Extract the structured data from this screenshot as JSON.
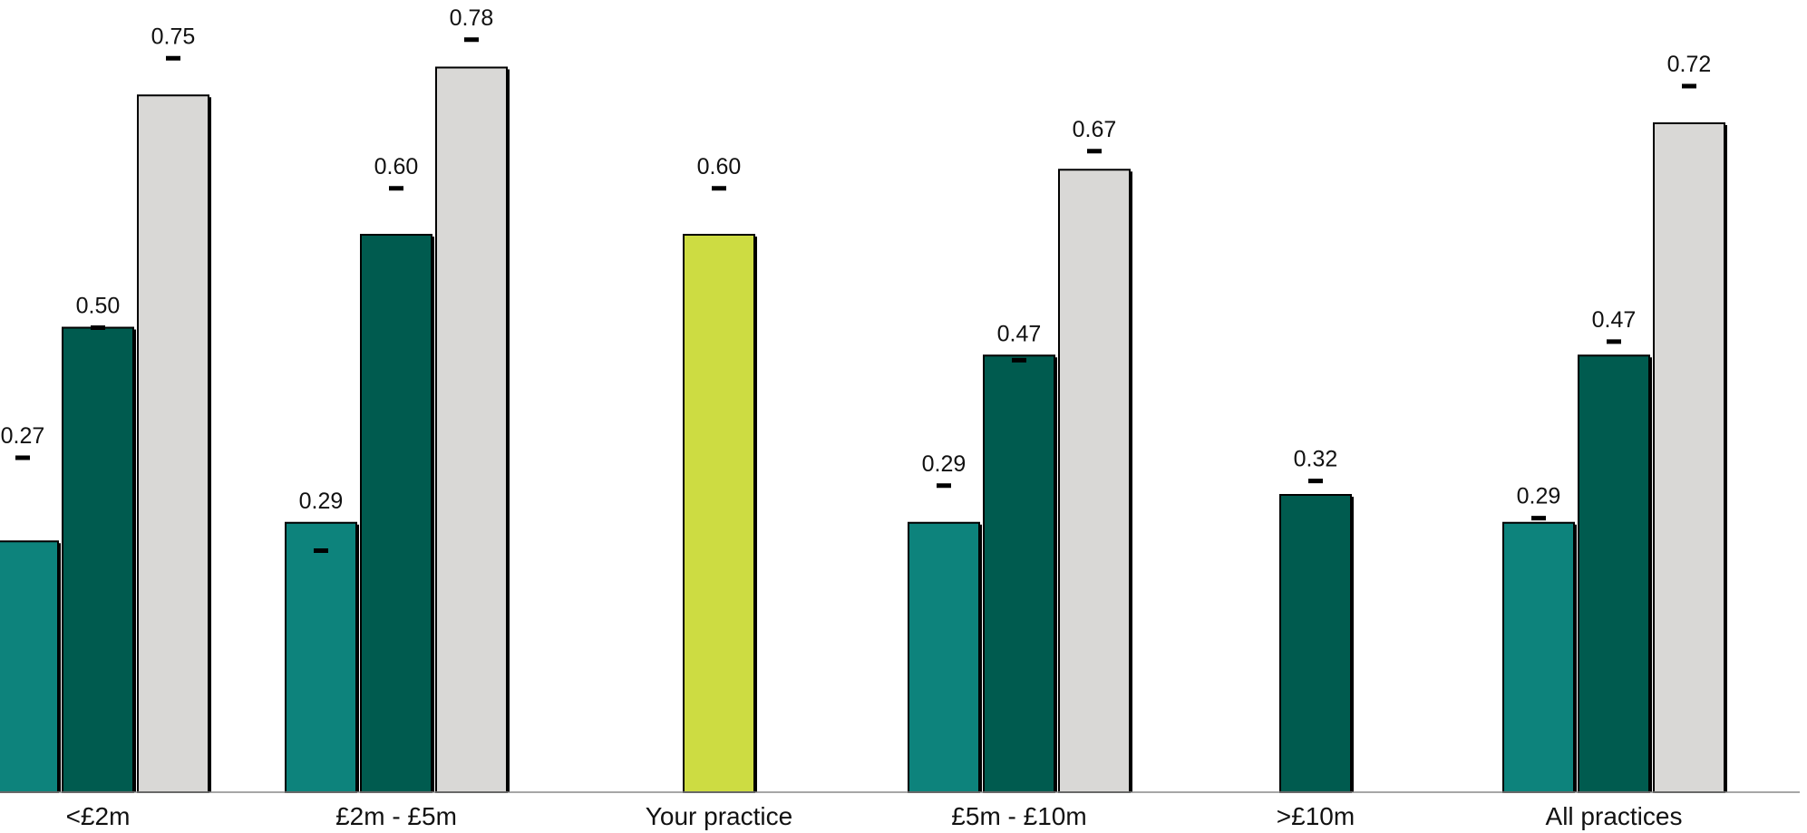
{
  "chart_data": {
    "type": "bar",
    "categories": [
      "<£2m",
      "£2m - £5m",
      "Your practice",
      "£5m - £10m",
      ">£10m",
      "All practices"
    ],
    "colors": {
      "teal": "#0d837c",
      "dark_green": "#005b4f",
      "light_grey": "#d9d8d6",
      "lime": "#cddc42",
      "outline": "#000000"
    },
    "groups": [
      {
        "category": "<£2m",
        "bars": [
          {
            "value": 0.27,
            "label": "0.27",
            "color": "teal",
            "marker": 0.36
          },
          {
            "value": 0.5,
            "label": "0.50",
            "color": "dark_green",
            "marker": 0.5
          },
          {
            "value": 0.75,
            "label": "0.75",
            "color": "light_grey",
            "marker": 0.79
          }
        ]
      },
      {
        "category": "£2m - £5m",
        "bars": [
          {
            "value": 0.29,
            "label": "0.29",
            "color": "teal",
            "marker": 0.26
          },
          {
            "value": 0.6,
            "label": "0.60",
            "color": "dark_green",
            "marker": 0.65
          },
          {
            "value": 0.78,
            "label": "0.78",
            "color": "light_grey",
            "marker": 0.81
          }
        ]
      },
      {
        "category": "Your practice",
        "bars": [
          {
            "value": 0.6,
            "label": "0.60",
            "color": "lime",
            "marker": 0.65
          }
        ]
      },
      {
        "category": "£5m - £10m",
        "bars": [
          {
            "value": 0.29,
            "label": "0.29",
            "color": "teal",
            "marker": 0.33
          },
          {
            "value": 0.47,
            "label": "0.47",
            "color": "dark_green",
            "marker": 0.465
          },
          {
            "value": 0.67,
            "label": "0.67",
            "color": "light_grey",
            "marker": 0.69
          }
        ]
      },
      {
        "category": ">£10m",
        "bars": [
          {
            "value": 0.32,
            "label": "0.32",
            "color": "dark_green",
            "marker": 0.335
          }
        ]
      },
      {
        "category": "All practices",
        "bars": [
          {
            "value": 0.29,
            "label": "0.29",
            "color": "teal",
            "marker": 0.295
          },
          {
            "value": 0.47,
            "label": "0.47",
            "color": "dark_green",
            "marker": 0.485
          },
          {
            "value": 0.72,
            "label": "0.72",
            "color": "light_grey",
            "marker": 0.76
          }
        ]
      }
    ],
    "title": "",
    "xlabel": "",
    "ylabel": "",
    "ylim": [
      0,
      0.85
    ],
    "grid": false,
    "legend": "none"
  }
}
